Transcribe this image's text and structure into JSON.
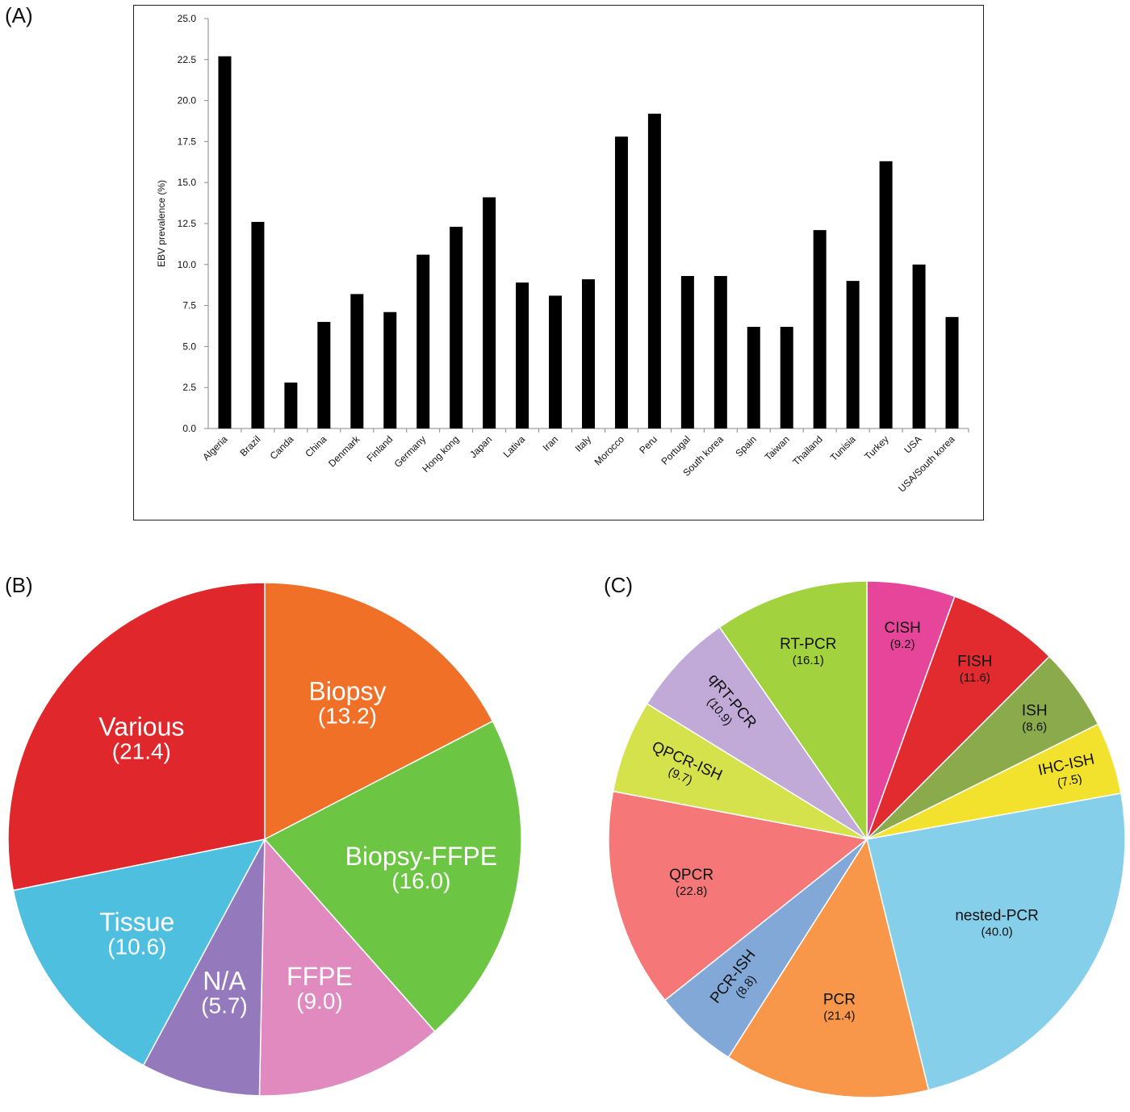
{
  "panels": {
    "a": "(A)",
    "b": "(B)",
    "c": "(C)"
  },
  "chart_data": [
    {
      "type": "bar",
      "ylabel": "EBV prevalence (%)",
      "xlabel": "",
      "ylim": [
        0,
        25
      ],
      "yticks": [
        "0.0",
        "2.5",
        "5.0",
        "7.5",
        "10.0",
        "12.5",
        "15.0",
        "17.5",
        "20.0",
        "22.5",
        "25.0"
      ],
      "categories": [
        "Algeria",
        "Brazil",
        "Canda",
        "China",
        "Denmark",
        "Finland",
        "Germany",
        "Hong kong",
        "Japan",
        "Lativa",
        "Iran",
        "Italy",
        "Morocco",
        "Peru",
        "Portugal",
        "South korea",
        "Spain",
        "Taiwan",
        "Thailand",
        "Tunisia",
        "Turkey",
        "USA",
        "USA/South korea"
      ],
      "values": [
        22.7,
        12.6,
        2.8,
        6.5,
        8.2,
        7.1,
        10.6,
        12.3,
        14.1,
        8.9,
        8.1,
        9.1,
        17.8,
        19.2,
        9.3,
        9.3,
        6.2,
        6.2,
        12.1,
        9.0,
        16.3,
        10.0,
        6.8
      ],
      "bar_color": "#000000",
      "grid": false,
      "legend": "none"
    },
    {
      "type": "pie",
      "slices": [
        {
          "label": "Biopsy",
          "value": 13.2,
          "display": "(13.2)",
          "color": "#f07028"
        },
        {
          "label": "Biopsy-FFPE",
          "value": 16.0,
          "display": "(16.0)",
          "color": "#6cc644"
        },
        {
          "label": "FFPE",
          "value": 9.0,
          "display": "(9.0)",
          "color": "#e08ac0"
        },
        {
          "label": "N/A",
          "value": 5.7,
          "display": "(5.7)",
          "color": "#9479bd"
        },
        {
          "label": "Tissue",
          "value": 10.6,
          "display": "(10.6)",
          "color": "#4fbfe0"
        },
        {
          "label": "Various",
          "value": 21.4,
          "display": "(21.4)",
          "color": "#e0282c"
        }
      ],
      "start": "top, clockwise",
      "text_color": "#ffffff",
      "legend": "none"
    },
    {
      "type": "pie",
      "slices": [
        {
          "label": "CISH",
          "value": 9.2,
          "display": "(9.2)",
          "color": "#e6459a"
        },
        {
          "label": "FISH",
          "value": 11.6,
          "display": "(11.6)",
          "color": "#e22b2f"
        },
        {
          "label": "ISH",
          "value": 8.6,
          "display": "(8.6)",
          "color": "#8aaa4c"
        },
        {
          "label": "IHC-ISH",
          "value": 7.5,
          "display": "(7.5)",
          "color": "#f2e22e"
        },
        {
          "label": "nested-PCR",
          "value": 40.0,
          "display": "(40.0)",
          "color": "#85cfea"
        },
        {
          "label": "PCR",
          "value": 21.4,
          "display": "(21.4)",
          "color": "#f8964a"
        },
        {
          "label": "PCR-ISH",
          "value": 8.8,
          "display": "(8.8)",
          "color": "#82a8d8"
        },
        {
          "label": "QPCR",
          "value": 22.8,
          "display": "(22.8)",
          "color": "#f57778"
        },
        {
          "label": "QPCR-ISH",
          "value": 9.7,
          "display": "(9.7)",
          "color": "#d5e24c"
        },
        {
          "label": "qRT-PCR",
          "value": 10.9,
          "display": "(10.9)",
          "color": "#c1a9d8"
        },
        {
          "label": "RT-PCR",
          "value": 16.1,
          "display": "(16.1)",
          "color": "#a2d23e"
        }
      ],
      "start": "top, clockwise",
      "text_color": "#111111",
      "legend": "none"
    }
  ]
}
